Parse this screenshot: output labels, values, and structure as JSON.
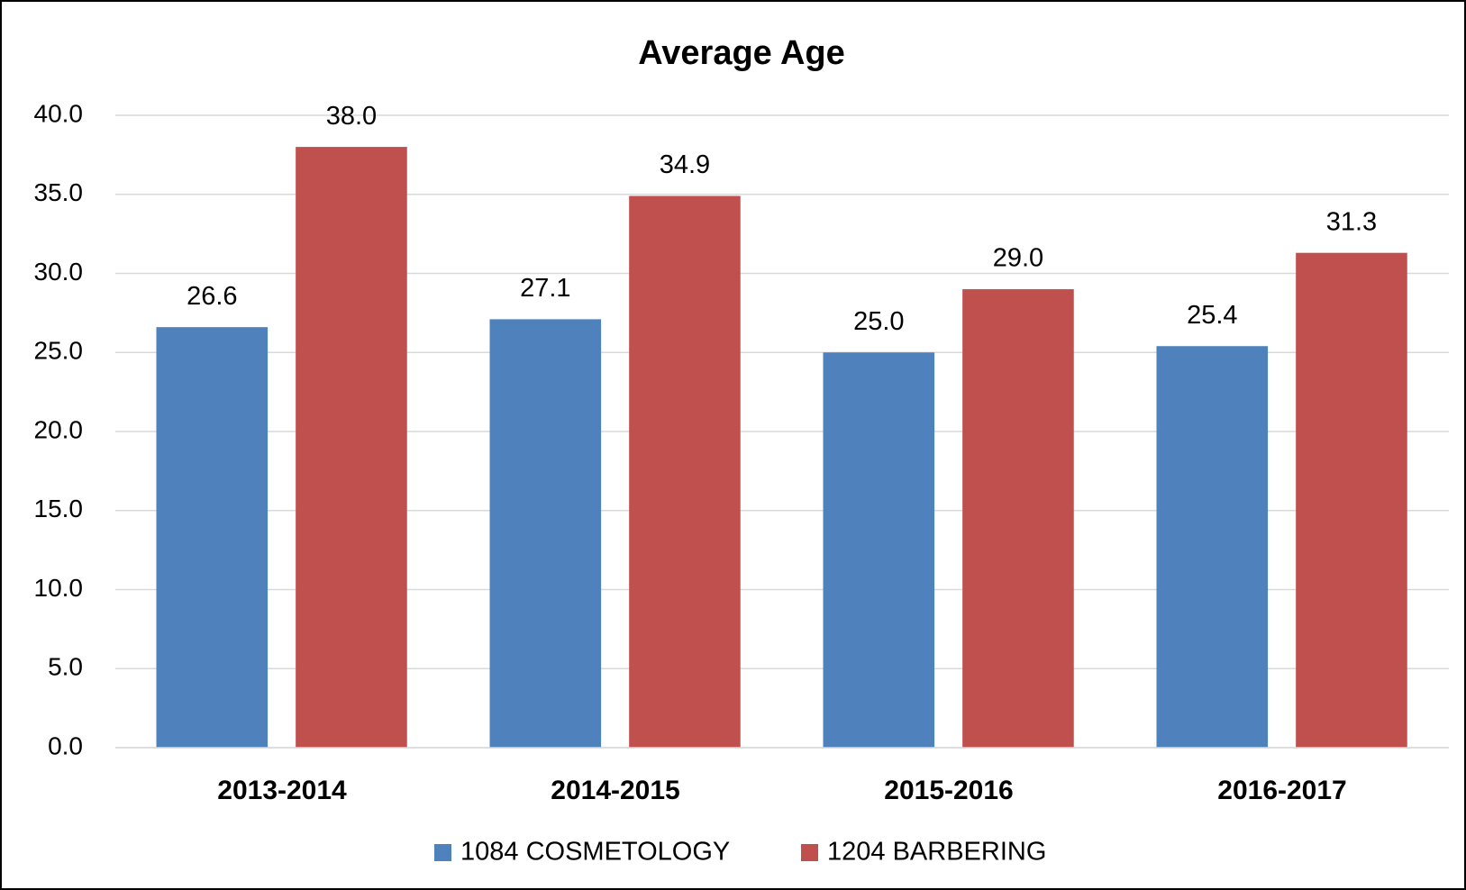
{
  "chart_data": {
    "type": "bar",
    "title": "Average Age",
    "categories": [
      "2013-2014",
      "2014-2015",
      "2015-2016",
      "2016-2017"
    ],
    "series": [
      {
        "name": "1084 COSMETOLOGY",
        "color": "#4f81bd",
        "values": [
          26.6,
          27.1,
          25.0,
          25.4
        ],
        "value_labels": [
          "26.6",
          "27.1",
          "25.0",
          "25.4"
        ]
      },
      {
        "name": "1204 BARBERING",
        "color": "#c0504d",
        "values": [
          38.0,
          34.9,
          29.0,
          31.3
        ],
        "value_labels": [
          "38.0",
          "34.9",
          "29.0",
          "31.3"
        ]
      }
    ],
    "ylim": [
      0,
      40
    ],
    "yticks": [
      {
        "value": 0,
        "label": "0.0"
      },
      {
        "value": 5,
        "label": "5.0"
      },
      {
        "value": 10,
        "label": "10.0"
      },
      {
        "value": 15,
        "label": "15.0"
      },
      {
        "value": 20,
        "label": "20.0"
      },
      {
        "value": 25,
        "label": "25.0"
      },
      {
        "value": 30,
        "label": "30.0"
      },
      {
        "value": 35,
        "label": "35.0"
      },
      {
        "value": 40,
        "label": "40.0"
      }
    ],
    "grid": true,
    "legend": "bottom"
  }
}
